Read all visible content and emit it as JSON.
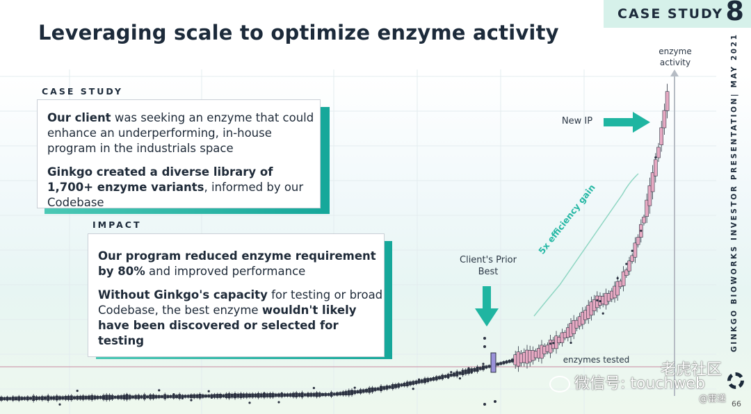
{
  "title": "Leveraging scale to optimize enzyme activity",
  "tag": {
    "label": "CASE STUDY",
    "number": "8"
  },
  "vertical_text": "GINKGO BIOWORKS   INVESTOR PRESENTATION| MAY 2021",
  "case_study": {
    "heading": "CASE STUDY",
    "p1_bold": "Our client",
    "p1_rest": " was seeking an enzyme that could enhance an underperforming, in-house program in the industrials space",
    "p2_bold": "Ginkgo created a diverse library of 1,700+ enzyme variants",
    "p2_rest": ", informed by our Codebase"
  },
  "impact": {
    "heading": "IMPACT",
    "p1_bold": "Our program reduced enzyme requirement by 80%",
    "p1_rest": " and improved performance",
    "p2_bold": "Without Ginkgo's capacity",
    "p2_mid": " for testing or broad Codebase, the best enzyme ",
    "p2_bold2": "wouldn't likely have been discovered or selected for testing"
  },
  "chart": {
    "y_label_1": "enzyme",
    "y_label_2": "activity",
    "x_label": "enzymes tested",
    "new_ip": "New IP",
    "prior_1": "Client's Prior",
    "prior_2": "Best",
    "gain": "5x efficiency gain",
    "colors": {
      "arrow": "#1fb5a1",
      "box": "#e6a9c2",
      "highlight": "#9b92d9",
      "dark": "#2b3140"
    }
  },
  "watermark": {
    "line1": "微信号: touchweb",
    "logo": "老虎社区",
    "sub": "@雷递"
  },
  "page_number": "66"
}
